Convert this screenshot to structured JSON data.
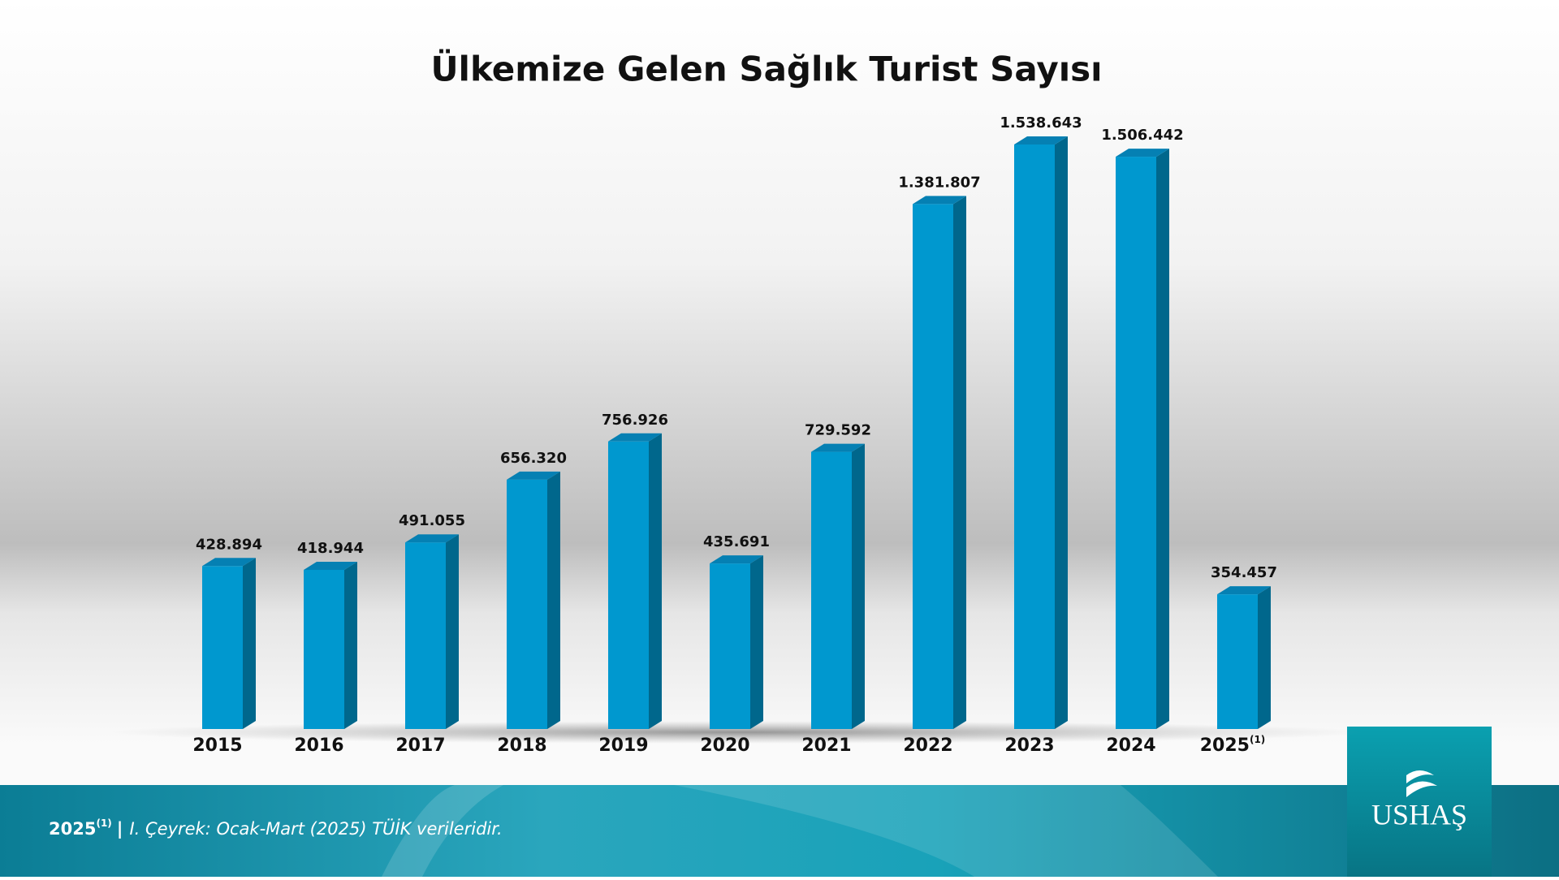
{
  "chart_data": {
    "type": "bar3d",
    "title": "Ülkemize Gelen Sağlık Turist Sayısı",
    "categories": [
      "2015",
      "2016",
      "2017",
      "2018",
      "2019",
      "2020",
      "2021",
      "2022",
      "2023",
      "2024",
      "2025"
    ],
    "notes": [
      null,
      null,
      null,
      null,
      null,
      null,
      null,
      null,
      null,
      null,
      "(1)"
    ],
    "values": [
      428894,
      418944,
      491055,
      656320,
      756926,
      435691,
      729592,
      1381807,
      1538643,
      1506442,
      354457
    ],
    "value_labels": [
      "428.894",
      "418.944",
      "491.055",
      "656.320",
      "756.926",
      "435.691",
      "729.592",
      "1.381.807",
      "1.538.643",
      "1.506.442",
      "354.457"
    ],
    "color": "#0098cf"
  },
  "footer": {
    "separator": "|",
    "text": "I. Çeyrek: Ocak-Mart (2025) TÜİK verileridir."
  },
  "logo": {
    "text": "USHAŞ"
  }
}
